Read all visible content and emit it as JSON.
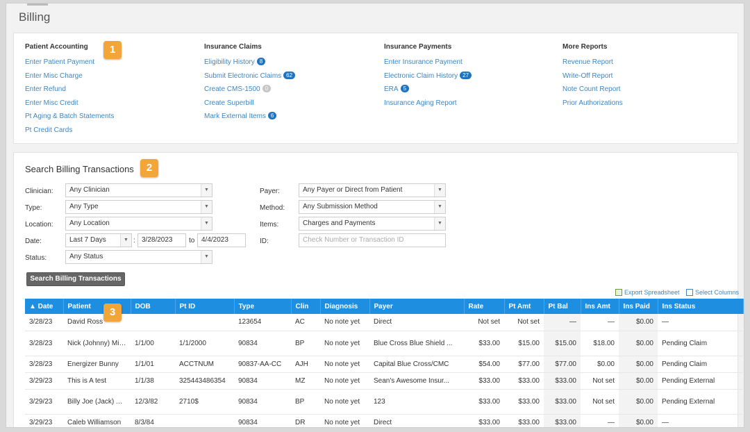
{
  "page_title": "Billing",
  "sections": [
    {
      "heading": "Patient Accounting",
      "links": [
        {
          "label": "Enter Patient Payment"
        },
        {
          "label": "Enter Misc Charge"
        },
        {
          "label": "Enter Refund"
        },
        {
          "label": "Enter Misc Credit"
        },
        {
          "label": "Pt Aging & Batch Statements"
        },
        {
          "label": "Pt Credit Cards"
        }
      ]
    },
    {
      "heading": "Insurance Claims",
      "links": [
        {
          "label": "Eligibility History",
          "badge": "8"
        },
        {
          "label": "Submit Electronic Claims",
          "badge": "62"
        },
        {
          "label": "Create CMS-1500",
          "badge": "0",
          "badge_grey": true
        },
        {
          "label": "Create Superbill"
        },
        {
          "label": "Mark External Items",
          "badge": "6"
        }
      ]
    },
    {
      "heading": "Insurance Payments",
      "links": [
        {
          "label": "Enter Insurance Payment"
        },
        {
          "label": "Electronic Claim History",
          "badge": "27"
        },
        {
          "label": "ERA",
          "badge": "5"
        },
        {
          "label": "Insurance Aging Report"
        }
      ]
    },
    {
      "heading": "More Reports",
      "links": [
        {
          "label": "Revenue Report"
        },
        {
          "label": "Write-Off Report"
        },
        {
          "label": "Note Count Report"
        },
        {
          "label": "Prior Authorizations"
        }
      ]
    }
  ],
  "callouts": {
    "one": "1",
    "two": "2",
    "three": "3"
  },
  "search": {
    "title": "Search Billing Transactions",
    "labels": {
      "clinician": "Clinician:",
      "type": "Type:",
      "location": "Location:",
      "date": "Date:",
      "status": "Status:",
      "payer": "Payer:",
      "method": "Method:",
      "items": "Items:",
      "id": "ID:"
    },
    "values": {
      "clinician": "Any Clinician",
      "type": "Any Type",
      "location": "Any Location",
      "date_range": "Last 7 Days",
      "date_from": "3/28/2023",
      "date_to_label": "to",
      "date_to": "4/4/2023",
      "status": "Any Status",
      "payer": "Any Payer or Direct from Patient",
      "method": "Any Submission Method",
      "items": "Charges and Payments"
    },
    "date_colon": ":",
    "id_placeholder": "Check Number or Transaction ID",
    "button": "Search Billing Transactions"
  },
  "tools": {
    "export": "Export Spreadsheet",
    "columns": "Select Columns"
  },
  "table": {
    "headers": {
      "date": "▲ Date",
      "patient": "Patient",
      "dob": "DOB",
      "ptid": "Pt ID",
      "type": "Type",
      "clin": "Clin",
      "diagnosis": "Diagnosis",
      "payer": "Payer",
      "rate": "Rate",
      "ptamt": "Pt Amt",
      "ptbal": "Pt Bal",
      "insamt": "Ins Amt",
      "inspaid": "Ins Paid",
      "insstatus": "Ins Status"
    },
    "rows": [
      {
        "date": "3/28/23",
        "patient": "David Ross",
        "dob": "",
        "ptid": "",
        "type": "123654",
        "clin": "AC",
        "diagnosis": "No note yet",
        "payer": "Direct",
        "payer_link": false,
        "rate": "Not set",
        "ptamt": "Not set",
        "ptbal": "—",
        "insamt": "—",
        "inspaid": "$0.00",
        "insstatus": "—",
        "muted_rate": true,
        "muted_insamt": true
      },
      {
        "date": "3/28/23",
        "patient": "Nick (Johnny) Miyai Miyai",
        "dob": "1/1/00",
        "ptid": "1/1/2000",
        "type": "90834",
        "clin": "BP",
        "diagnosis": "No note yet",
        "payer": "Blue Cross Blue Shield ...",
        "payer_link": true,
        "rate": "$33.00",
        "ptamt": "$15.00",
        "ptbal": "$15.00",
        "insamt": "$18.00",
        "inspaid": "$0.00",
        "insstatus": "Pending Claim",
        "muted_rate": false,
        "muted_insamt": false
      },
      {
        "date": "3/28/23",
        "patient": "Energizer Bunny",
        "dob": "1/1/01",
        "ptid": "ACCTNUM",
        "type": "90837-AA-CC",
        "clin": "AJH",
        "diagnosis": "No note yet",
        "payer": "Capital Blue Cross/CMC",
        "payer_link": true,
        "rate": "$54.00",
        "ptamt": "$77.00",
        "ptbal": "$77.00",
        "insamt": "$0.00",
        "inspaid": "$0.00",
        "insstatus": "Pending Claim",
        "muted_rate": false,
        "muted_insamt": false
      },
      {
        "date": "3/29/23",
        "patient": "This is A test",
        "dob": "1/1/38",
        "ptid": "325443486354",
        "type": "90834",
        "clin": "MZ",
        "diagnosis": "No note yet",
        "payer": "Sean's Awesome Insur...",
        "payer_link": true,
        "rate": "$33.00",
        "ptamt": "$33.00",
        "ptbal": "$33.00",
        "insamt": "Not set",
        "inspaid": "$0.00",
        "insstatus": "Pending External",
        "muted_rate": false,
        "muted_insamt": true
      },
      {
        "date": "3/29/23",
        "patient": "Billy Joe (Jack) Appleyard",
        "dob": "12/3/82",
        "ptid": "2710$",
        "type": "90834",
        "clin": "BP",
        "diagnosis": "No note yet",
        "payer": "123",
        "payer_link": true,
        "rate": "$33.00",
        "ptamt": "$33.00",
        "ptbal": "$33.00",
        "insamt": "Not set",
        "inspaid": "$0.00",
        "insstatus": "Pending External",
        "muted_rate": false,
        "muted_insamt": true
      },
      {
        "date": "3/29/23",
        "patient": "Caleb Williamson",
        "dob": "8/3/84",
        "ptid": "",
        "type": "90834",
        "clin": "DR",
        "diagnosis": "No note yet",
        "payer": "Direct",
        "payer_link": false,
        "rate": "$33.00",
        "ptamt": "$33.00",
        "ptbal": "$33.00",
        "insamt": "—",
        "inspaid": "$0.00",
        "insstatus": "—",
        "muted_rate": false,
        "muted_insamt": true
      }
    ]
  }
}
